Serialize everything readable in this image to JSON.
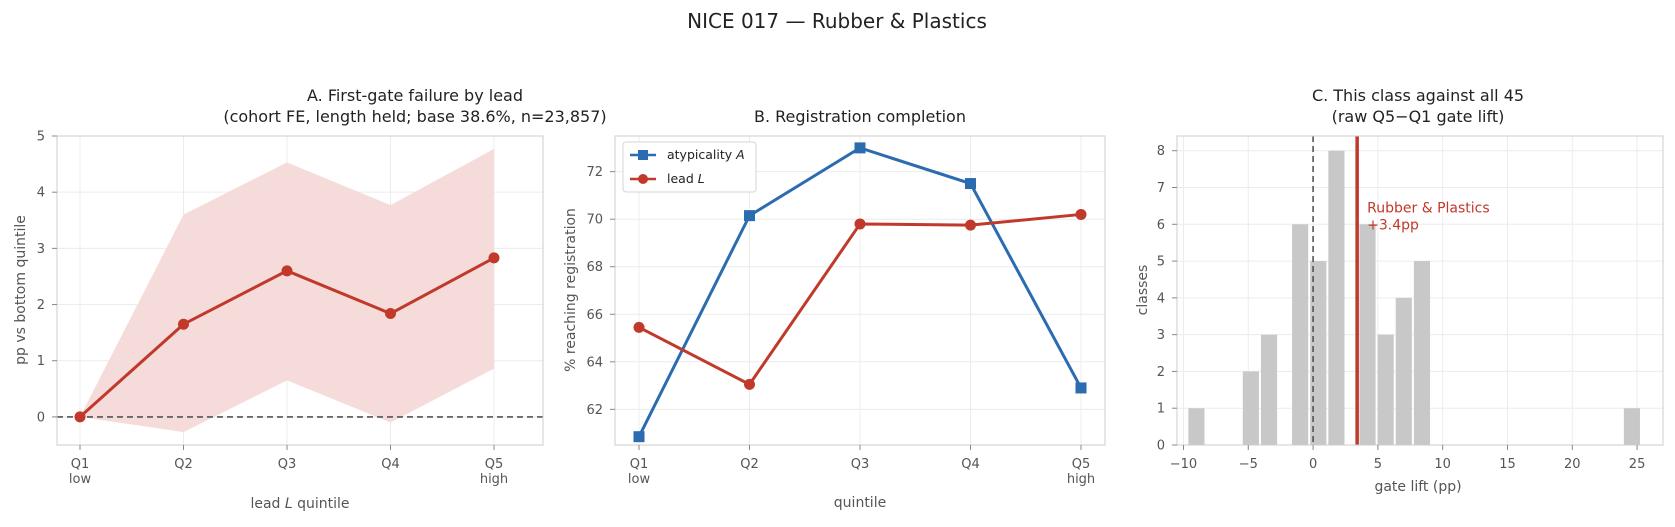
{
  "figure": {
    "title": "NICE 017 — Rubber & Plastics"
  },
  "colors": {
    "red": "#c0392b",
    "blue": "#2b6cb0",
    "band": "#f5dcdb",
    "bar": "#c8c8c8"
  },
  "chart_data": [
    {
      "id": "A",
      "type": "line",
      "title": "A. First-gate failure by lead",
      "subtitle": "(cohort FE, length held; base 38.6%, n=23,857)",
      "categories": [
        "Q1",
        "Q2",
        "Q3",
        "Q4",
        "Q5"
      ],
      "category_sublabels": [
        "low",
        "",
        "",
        "",
        "high"
      ],
      "xlabel_prefix": "lead",
      "xlabel_symbol": "L",
      "xlabel_suffix": "quintile",
      "ylabel": "pp vs bottom quintile",
      "ylim": [
        -0.5,
        5
      ],
      "yticks": [
        0,
        1,
        2,
        3,
        4,
        5
      ],
      "reference_line": 0,
      "series": [
        {
          "values": [
            0,
            1.65,
            2.6,
            1.84,
            2.83
          ],
          "ci_low": [
            0,
            -0.27,
            0.65,
            -0.1,
            0.86
          ],
          "ci_high": [
            0,
            3.6,
            4.53,
            3.77,
            4.77
          ]
        }
      ]
    },
    {
      "id": "B",
      "type": "line",
      "title": "B. Registration completion",
      "categories": [
        "Q1",
        "Q2",
        "Q3",
        "Q4",
        "Q5"
      ],
      "category_sublabels": [
        "low",
        "",
        "",
        "",
        "high"
      ],
      "xlabel": "quintile",
      "ylabel": "% reaching registration",
      "ylim": [
        60.5,
        73.5
      ],
      "yticks": [
        62,
        64,
        66,
        68,
        70,
        72
      ],
      "legend_position": "upper-left",
      "series": [
        {
          "name": "atypicality",
          "symbol": "A",
          "marker": "square",
          "values": [
            60.85,
            70.15,
            73.0,
            71.5,
            62.9
          ]
        },
        {
          "name": "lead",
          "symbol": "L",
          "marker": "circle",
          "values": [
            65.45,
            63.05,
            69.8,
            69.75,
            70.2
          ]
        }
      ]
    },
    {
      "id": "C",
      "type": "bar",
      "title": "C. This class against all 45",
      "subtitle": "(raw Q5−Q1 gate lift)",
      "xlabel": "gate lift (pp)",
      "ylabel": "classes",
      "xlim": [
        -10.5,
        27
      ],
      "ylim": [
        0,
        8.4
      ],
      "xticks": [
        -10,
        -5,
        0,
        5,
        10,
        15,
        20,
        25
      ],
      "yticks": [
        0,
        1,
        2,
        3,
        4,
        5,
        6,
        7,
        8
      ],
      "bin_width": 1.4,
      "bins": [
        {
          "x": -9.0,
          "count": 1
        },
        {
          "x": -4.8,
          "count": 2
        },
        {
          "x": -3.4,
          "count": 3
        },
        {
          "x": -1.0,
          "count": 6
        },
        {
          "x": 0.4,
          "count": 5
        },
        {
          "x": 1.8,
          "count": 8
        },
        {
          "x": 4.2,
          "count": 6
        },
        {
          "x": 5.6,
          "count": 3
        },
        {
          "x": 7.0,
          "count": 4
        },
        {
          "x": 8.4,
          "count": 5
        },
        {
          "x": 24.6,
          "count": 1
        }
      ],
      "zero_line": 0,
      "highlight": {
        "value": 3.4,
        "label": "Rubber & Plastics",
        "value_label": "+3.4pp"
      }
    }
  ]
}
